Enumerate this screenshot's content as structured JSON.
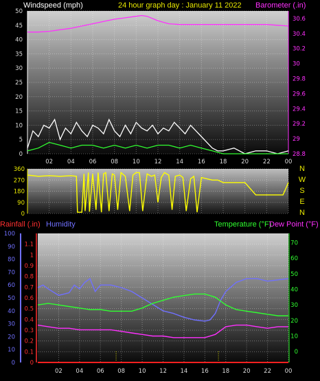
{
  "header": {
    "title": "24 hour graph day : January 11 2022",
    "title_color": "#e8e800",
    "wind_label": "Windspeed (mph)",
    "wind_label_color": "#ffffff",
    "baro_label": "Barometer (.in)",
    "baro_label_color": "#ff30ff"
  },
  "lower_header": {
    "rain_label": "Rainfall (.in)",
    "rain_color": "#ff3030",
    "humidity_label": "Humidity",
    "humidity_color": "#7070ff",
    "temp_label": "Temperature (°F)",
    "temp_color": "#30ff30",
    "dew_label": "Dew Point (°F)",
    "dew_color": "#ff30ff"
  },
  "compass": [
    "N",
    "W",
    "S",
    "E",
    "N"
  ],
  "compass_color": "#e8e800",
  "chart_data": [
    {
      "type": "line",
      "name": "wind-and-barometer",
      "x_ticks": [
        "02",
        "04",
        "06",
        "08",
        "10",
        "12",
        "14",
        "16",
        "18",
        "20",
        "22",
        "00"
      ],
      "y_left_ticks": [
        "0",
        "5",
        "10",
        "15",
        "20",
        "25",
        "30",
        "35",
        "40",
        "45",
        "50"
      ],
      "y_left_range": [
        0,
        50
      ],
      "y_right_ticks": [
        "28.8",
        "29",
        "29.2",
        "29.4",
        "29.6",
        "29.8",
        "30",
        "30.2",
        "30.4",
        "30.6"
      ],
      "y_right_range": [
        28.8,
        30.7
      ],
      "series": [
        {
          "name": "Barometer (.in)",
          "color": "#ff30ff",
          "x": [
            0,
            1,
            2,
            3,
            4,
            5,
            6,
            7,
            8,
            9,
            10,
            10.5,
            11,
            12,
            13,
            14,
            15,
            16,
            17,
            18,
            19,
            20,
            21,
            22,
            23,
            24
          ],
          "values": [
            30.42,
            30.42,
            30.43,
            30.45,
            30.47,
            30.5,
            30.53,
            30.56,
            30.59,
            30.61,
            30.63,
            30.64,
            30.63,
            30.57,
            30.53,
            30.52,
            30.52,
            30.52,
            30.52,
            30.52,
            30.52,
            30.52,
            30.52,
            30.52,
            30.51,
            30.5
          ]
        },
        {
          "name": "Wind gust",
          "color": "#ffffff",
          "x": [
            0,
            0.5,
            1,
            1.5,
            2,
            2.5,
            3,
            3.5,
            4,
            4.5,
            5,
            5.5,
            6,
            6.5,
            7,
            7.5,
            8,
            8.5,
            9,
            9.5,
            10,
            10.5,
            11,
            11.5,
            12,
            12.5,
            13,
            13.5,
            14,
            14.5,
            15,
            15.5,
            16,
            16.5,
            17,
            17.5,
            18,
            19,
            20,
            21,
            22,
            23,
            24
          ],
          "values": [
            2,
            8,
            6,
            10,
            9,
            12,
            5,
            9,
            7,
            11,
            8,
            6,
            10,
            9,
            7,
            12,
            8,
            6,
            10,
            7,
            11,
            9,
            8,
            10,
            7,
            9,
            8,
            11,
            9,
            7,
            10,
            8,
            6,
            4,
            2,
            1,
            1,
            2,
            0,
            1,
            1,
            0,
            1
          ]
        },
        {
          "name": "Wind average",
          "color": "#30ff30",
          "x": [
            0,
            1,
            2,
            3,
            4,
            5,
            6,
            7,
            8,
            9,
            10,
            11,
            12,
            13,
            14,
            15,
            16,
            17,
            18,
            19,
            20,
            21,
            22,
            23,
            24
          ],
          "values": [
            1,
            2,
            4,
            3,
            2,
            3,
            3,
            2,
            3,
            2,
            3,
            2,
            3,
            3,
            2,
            3,
            2,
            1,
            0,
            0,
            0,
            0,
            0,
            0,
            0
          ]
        }
      ]
    },
    {
      "type": "line",
      "name": "wind-direction",
      "y_ticks": [
        "0",
        "90",
        "180",
        "270",
        "360"
      ],
      "y_range": [
        0,
        360
      ],
      "series": [
        {
          "name": "Direction",
          "color": "#ffff00",
          "x": [
            0,
            1,
            2,
            3,
            4,
            4.5,
            4.6,
            5,
            5.2,
            5.3,
            5.6,
            5.7,
            6,
            6.3,
            6.5,
            6.8,
            7,
            7.2,
            7.5,
            7.8,
            8,
            8.3,
            8.6,
            9,
            9.4,
            9.7,
            10,
            10.3,
            10.6,
            11,
            11.4,
            11.7,
            12,
            12.3,
            12.6,
            13,
            13.3,
            13.6,
            14,
            14.3,
            14.6,
            15,
            15.3,
            15.6,
            16,
            16.5,
            17,
            17.5,
            18,
            19,
            20,
            21,
            22,
            23,
            23.5,
            24
          ],
          "values": [
            310,
            300,
            305,
            300,
            305,
            300,
            10,
            10,
            320,
            20,
            330,
            15,
            320,
            30,
            330,
            10,
            320,
            330,
            20,
            320,
            310,
            30,
            330,
            300,
            20,
            310,
            330,
            330,
            20,
            320,
            300,
            310,
            90,
            290,
            330,
            310,
            30,
            300,
            310,
            290,
            20,
            280,
            300,
            10,
            290,
            280,
            270,
            270,
            250,
            250,
            250,
            150,
            150,
            150,
            150,
            250
          ]
        }
      ]
    },
    {
      "type": "line",
      "name": "temperature-humidity",
      "x_ticks": [
        "02",
        "04",
        "06",
        "08",
        "10",
        "12",
        "14",
        "16",
        "18",
        "20",
        "22",
        "00"
      ],
      "humidity_ticks": [
        "0",
        "10",
        "20",
        "30",
        "40",
        "50",
        "60",
        "70",
        "80",
        "90",
        "100"
      ],
      "humidity_range": [
        0,
        100
      ],
      "rain_ticks": [
        "0",
        "0.1",
        "0.2",
        "0.3",
        "0.4",
        "0.5",
        "0.6",
        "0.7",
        "0.8",
        "0.9",
        "1",
        "1.1"
      ],
      "rain_range": [
        0,
        1.2
      ],
      "temp_ticks": [
        "0",
        "10",
        "20",
        "30",
        "40",
        "50",
        "60",
        "70"
      ],
      "temp_range": [
        -7,
        76
      ],
      "series": [
        {
          "name": "Humidity",
          "color": "#7070ff",
          "x": [
            0,
            0.5,
            1,
            2,
            3,
            3.5,
            4,
            4.5,
            5,
            5.5,
            6,
            7,
            8,
            9,
            10,
            11,
            12,
            13,
            14,
            15,
            16,
            16.5,
            17,
            17.5,
            18,
            19,
            20,
            21,
            22,
            23,
            24
          ],
          "values": [
            58,
            60,
            57,
            52,
            54,
            60,
            57,
            62,
            65,
            55,
            60,
            60,
            58,
            55,
            50,
            45,
            40,
            38,
            35,
            33,
            32,
            33,
            38,
            48,
            55,
            62,
            65,
            65,
            63,
            64,
            65
          ]
        },
        {
          "name": "Temperature (°F)",
          "color": "#30ff30",
          "x": [
            0,
            1,
            2,
            3,
            4,
            5,
            6,
            7,
            8,
            9,
            10,
            11,
            12,
            13,
            14,
            15,
            16,
            17,
            18,
            19,
            20,
            21,
            22,
            23,
            24
          ],
          "values": [
            30,
            31,
            30,
            29,
            28,
            27,
            27,
            26,
            26,
            26,
            28,
            31,
            33,
            35,
            36,
            37,
            37,
            35,
            30,
            27,
            26,
            25,
            24,
            23,
            23
          ]
        },
        {
          "name": "Dew Point (°F)",
          "color": "#ff30ff",
          "x": [
            0,
            1,
            2,
            3,
            4,
            5,
            6,
            7,
            8,
            9,
            10,
            11,
            12,
            13,
            14,
            15,
            16,
            17,
            18,
            19,
            20,
            21,
            22,
            23,
            24
          ],
          "values": [
            17,
            16,
            15,
            15,
            14,
            14,
            14,
            14,
            13,
            12,
            11,
            10,
            10,
            9,
            9,
            9,
            9,
            11,
            16,
            17,
            17,
            16,
            15,
            16,
            16
          ]
        },
        {
          "name": "Rainfall (.in)",
          "color": "#ff2020",
          "x": [
            0,
            24
          ],
          "values": [
            0,
            0
          ]
        }
      ]
    }
  ]
}
